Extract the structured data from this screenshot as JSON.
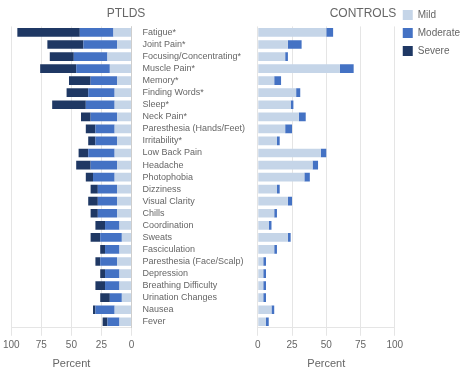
{
  "chart_data": [
    {
      "type": "bar",
      "title": "PTLDS",
      "orientation": "horizontal",
      "stacked": true,
      "categories": [
        "Fatigue*",
        "Joint Pain*",
        "Focusing/Concentrating*",
        "Muscle Pain*",
        "Memory*",
        "Finding Words*",
        "Sleep*",
        "Neck Pain*",
        "Paresthesia (Hands/Feet)",
        "Irritability*",
        "Low Back Pain",
        "Headache",
        "Photophobia",
        "Dizziness",
        "Visual Clarity",
        "Chills",
        "Coordination",
        "Sweats",
        "Fasciculation",
        "Paresthesia (Face/Scalp)",
        "Depression",
        "Breathing Difficulty",
        "Urination Changes",
        "Nausea",
        "Fever"
      ],
      "series": [
        {
          "name": "Mild",
          "color": "#c5d5e8",
          "values": [
            15,
            12,
            20,
            18,
            12,
            14,
            14,
            12,
            14,
            12,
            14,
            12,
            14,
            12,
            12,
            12,
            10,
            8,
            10,
            12,
            10,
            10,
            8,
            14,
            10
          ]
        },
        {
          "name": "Moderate",
          "color": "#4472c4",
          "values": [
            28,
            28,
            28,
            28,
            22,
            22,
            24,
            22,
            16,
            18,
            22,
            22,
            18,
            16,
            16,
            16,
            12,
            18,
            12,
            14,
            12,
            12,
            10,
            16,
            10
          ]
        },
        {
          "name": "Severe",
          "color": "#1f3864",
          "values": [
            52,
            30,
            20,
            30,
            18,
            18,
            28,
            8,
            8,
            6,
            8,
            12,
            6,
            6,
            8,
            6,
            8,
            8,
            4,
            4,
            4,
            8,
            8,
            2,
            4
          ]
        }
      ],
      "xlabel": "Percent",
      "xlim": [
        100,
        0
      ],
      "xticks": [
        100,
        75,
        50,
        25,
        0
      ],
      "grid": true
    },
    {
      "type": "bar",
      "title": "CONTROLS",
      "orientation": "horizontal",
      "stacked": true,
      "categories": [
        "Fatigue*",
        "Joint Pain*",
        "Focusing/Concentrating*",
        "Muscle Pain*",
        "Memory*",
        "Finding Words*",
        "Sleep*",
        "Neck Pain*",
        "Paresthesia (Hands/Feet)",
        "Irritability*",
        "Low Back Pain",
        "Headache",
        "Photophobia",
        "Dizziness",
        "Visual Clarity",
        "Chills",
        "Coordination",
        "Sweats",
        "Fasciculation",
        "Paresthesia (Face/Scalp)",
        "Depression",
        "Breathing Difficulty",
        "Urination Changes",
        "Nausea",
        "Fever"
      ],
      "series": [
        {
          "name": "Mild",
          "color": "#c5d5e8",
          "values": [
            50,
            22,
            20,
            60,
            12,
            28,
            24,
            30,
            20,
            14,
            46,
            40,
            34,
            14,
            22,
            12,
            8,
            22,
            12,
            4,
            4,
            4,
            4,
            10,
            6
          ]
        },
        {
          "name": "Moderate",
          "color": "#4472c4",
          "values": [
            5,
            10,
            2,
            10,
            5,
            3,
            2,
            5,
            5,
            2,
            4,
            4,
            4,
            2,
            3,
            2,
            2,
            2,
            2,
            2,
            2,
            2,
            2,
            2,
            2
          ]
        },
        {
          "name": "Severe",
          "color": "#1f3864",
          "values": [
            0,
            0,
            0,
            0,
            0,
            0,
            0,
            0,
            0,
            0,
            0,
            0,
            0,
            0,
            0,
            0,
            0,
            0,
            0,
            0,
            0,
            0,
            0,
            0,
            0
          ]
        }
      ],
      "xlabel": "Percent",
      "xlim": [
        0,
        100
      ],
      "xticks": [
        0,
        25,
        50,
        75,
        100
      ],
      "grid": true,
      "legend": "upper right",
      "tick_labels": "x"
    }
  ]
}
